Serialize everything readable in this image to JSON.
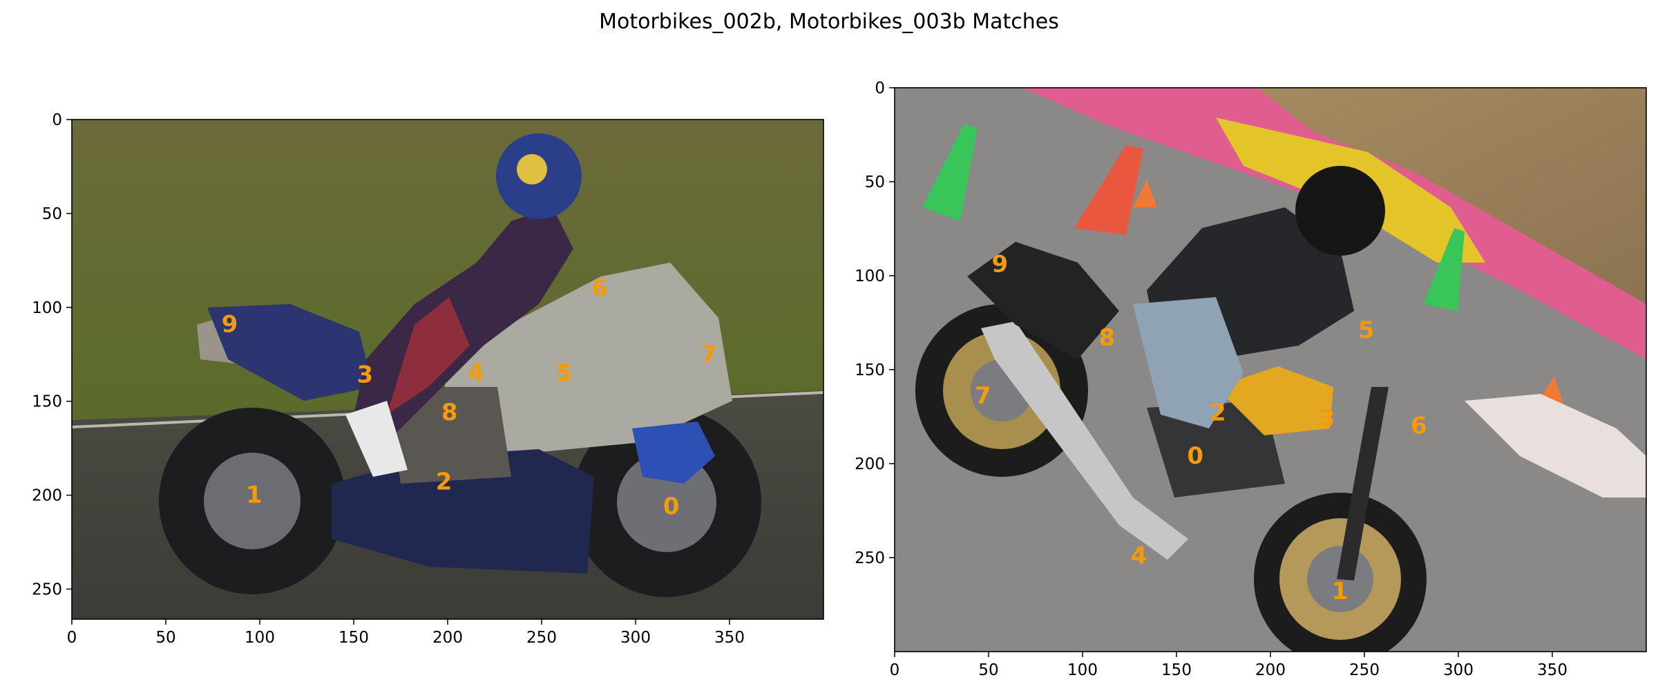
{
  "title": "Motorbikes_002b, Motorbikes_003b Matches",
  "colors": {
    "keypoint_label": "#f59a0b",
    "axes": "#000000",
    "background": "#ffffff"
  },
  "chart_data": [
    {
      "type": "scatter",
      "name": "Motorbikes_002b",
      "image_size": [
        400,
        266
      ],
      "xlim": [
        0,
        400
      ],
      "ylim": [
        266,
        0
      ],
      "xticks": [
        0,
        50,
        100,
        150,
        200,
        250,
        300,
        350
      ],
      "yticks": [
        0,
        50,
        100,
        150,
        200,
        250
      ],
      "grid": false,
      "points": [
        {
          "label": "0",
          "x": 319,
          "y": 206
        },
        {
          "label": "1",
          "x": 97,
          "y": 200
        },
        {
          "label": "2",
          "x": 198,
          "y": 193
        },
        {
          "label": "3",
          "x": 156,
          "y": 136
        },
        {
          "label": "4",
          "x": 215,
          "y": 135
        },
        {
          "label": "5",
          "x": 262,
          "y": 135
        },
        {
          "label": "6",
          "x": 281,
          "y": 90
        },
        {
          "label": "7",
          "x": 339,
          "y": 125
        },
        {
          "label": "8",
          "x": 201,
          "y": 156
        },
        {
          "label": "9",
          "x": 84,
          "y": 109
        }
      ]
    },
    {
      "type": "scatter",
      "name": "Motorbikes_003b",
      "image_size": [
        400,
        300
      ],
      "xlim": [
        0,
        400
      ],
      "ylim": [
        300,
        0
      ],
      "xticks": [
        0,
        50,
        100,
        150,
        200,
        250,
        300,
        350
      ],
      "yticks": [
        0,
        50,
        100,
        150,
        200,
        250
      ],
      "grid": false,
      "points": [
        {
          "label": "0",
          "x": 160,
          "y": 196
        },
        {
          "label": "1",
          "x": 237,
          "y": 268
        },
        {
          "label": "2",
          "x": 172,
          "y": 173
        },
        {
          "label": "3",
          "x": 230,
          "y": 176
        },
        {
          "label": "4",
          "x": 130,
          "y": 249
        },
        {
          "label": "5",
          "x": 251,
          "y": 129
        },
        {
          "label": "6",
          "x": 279,
          "y": 180
        },
        {
          "label": "7",
          "x": 47,
          "y": 164
        },
        {
          "label": "8",
          "x": 113,
          "y": 133
        },
        {
          "label": "9",
          "x": 56,
          "y": 94
        }
      ]
    }
  ]
}
